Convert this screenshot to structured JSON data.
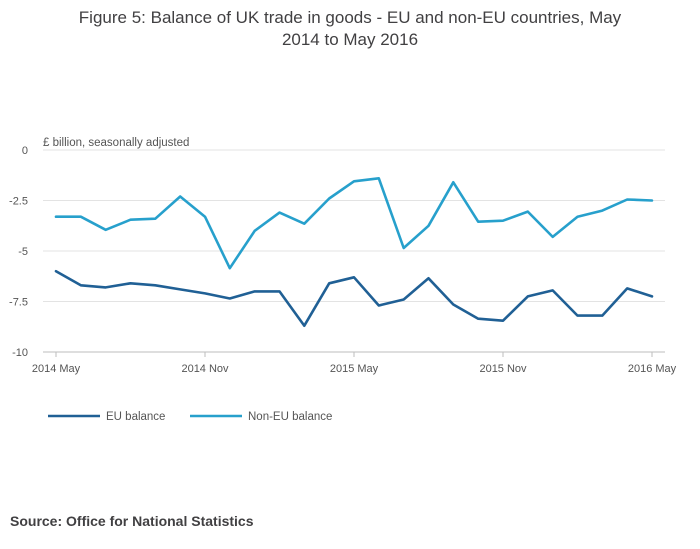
{
  "title_line1": "Figure 5: Balance of UK trade in goods - EU and non-EU countries, May",
  "title_line2": "2014 to May 2016",
  "source": "Source: Office for National Statistics",
  "chart_data": {
    "type": "line",
    "title": "Figure 5: Balance of UK trade in goods - EU and non-EU countries, May 2014 to May 2016",
    "ylabel": "£ billion, seasonally adjusted",
    "xlabel": "",
    "ylim": [
      -10,
      0
    ],
    "yticks": [
      0,
      -2.5,
      -5,
      -7.5,
      -10
    ],
    "ytick_labels": [
      "0",
      "-2.5",
      "-5",
      "-7.5",
      "-10"
    ],
    "x": [
      "2014 May",
      "2014 Jun",
      "2014 Jul",
      "2014 Aug",
      "2014 Sep",
      "2014 Oct",
      "2014 Nov",
      "2014 Dec",
      "2015 Jan",
      "2015 Feb",
      "2015 Mar",
      "2015 Apr",
      "2015 May",
      "2015 Jun",
      "2015 Jul",
      "2015 Aug",
      "2015 Sep",
      "2015 Oct",
      "2015 Nov",
      "2015 Dec",
      "2016 Jan",
      "2016 Feb",
      "2016 Mar",
      "2016 Apr",
      "2016 May"
    ],
    "xtick_labels": [
      {
        "index": 0,
        "label": "2014 May"
      },
      {
        "index": 6,
        "label": "2014 Nov"
      },
      {
        "index": 12,
        "label": "2015 May"
      },
      {
        "index": 18,
        "label": "2015 Nov"
      },
      {
        "index": 24,
        "label": "2016 May"
      }
    ],
    "grid": true,
    "legend_position": "bottom-left",
    "series": [
      {
        "name": "EU balance",
        "color": "#206095",
        "values": [
          -6.0,
          -6.7,
          -6.8,
          -6.6,
          -6.7,
          -6.9,
          -7.1,
          -7.35,
          -7.0,
          -7.0,
          -8.7,
          -6.6,
          -6.3,
          -7.7,
          -7.4,
          -6.35,
          -7.65,
          -8.35,
          -8.45,
          -7.25,
          -6.95,
          -8.2,
          -8.2,
          -6.85,
          -7.25
        ]
      },
      {
        "name": "Non-EU balance",
        "color": "#27a0cc",
        "values": [
          -3.3,
          -3.3,
          -3.95,
          -3.45,
          -3.4,
          -2.3,
          -3.3,
          -5.85,
          -4.0,
          -3.1,
          -3.65,
          -2.4,
          -1.55,
          -1.4,
          -4.85,
          -3.75,
          -1.6,
          -3.55,
          -3.5,
          -3.05,
          -4.3,
          -3.3,
          -3.0,
          -2.45,
          -2.5
        ]
      }
    ]
  }
}
